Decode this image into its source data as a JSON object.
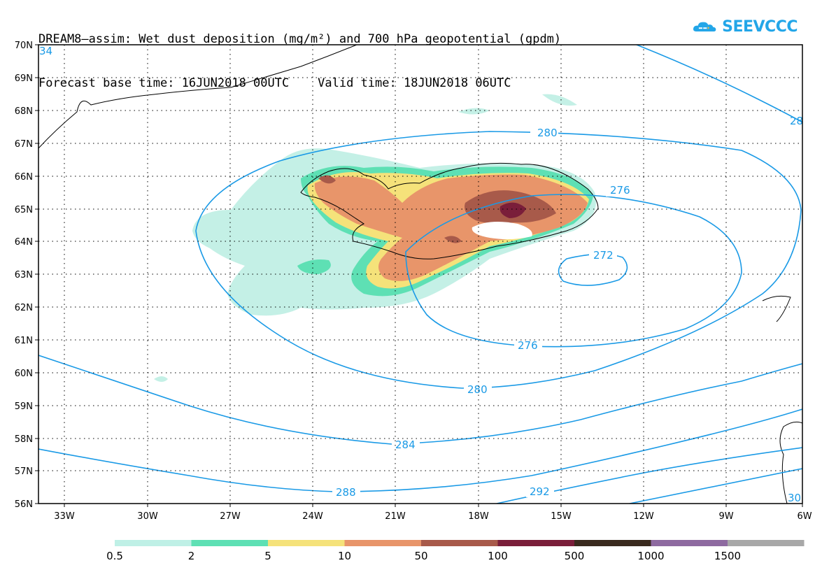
{
  "header": {
    "title_line1": "DREAM8–assim: Wet dust deposition (mg/m²) and 700 hPa geopotential (gpdm)",
    "title_line2": "Forecast base time: 16JUN2018 00UTC    Valid time: 18JUN2018 06UTC",
    "logo_text": "SEEVCCC",
    "logo_icon": "cloud-icon"
  },
  "map": {
    "lat_labels": [
      "70N",
      "69N",
      "68N",
      "67N",
      "66N",
      "65N",
      "64N",
      "63N",
      "62N",
      "61N",
      "60N",
      "59N",
      "58N",
      "57N",
      "56N"
    ],
    "lon_labels": [
      "33W",
      "30W",
      "27W",
      "24W",
      "21W",
      "18W",
      "15W",
      "12W",
      "9W",
      "6W"
    ],
    "contour_labels": [
      "34",
      "280",
      "28",
      "276",
      "272",
      "276",
      "280",
      "284",
      "288",
      "292",
      "30"
    ],
    "colors": {
      "contour": "#1a9ae6",
      "coast": "#000000"
    }
  },
  "legend": {
    "thresholds": [
      "0.5",
      "2",
      "5",
      "10",
      "50",
      "100",
      "500",
      "1000",
      "1500"
    ],
    "colors": [
      "#bff0e6",
      "#5ee0b4",
      "#f5e27a",
      "#e8956a",
      "#a85a4a",
      "#7a1e3a",
      "#3a2a1e",
      "#8e6aa0",
      "#a8a8a8"
    ]
  }
}
